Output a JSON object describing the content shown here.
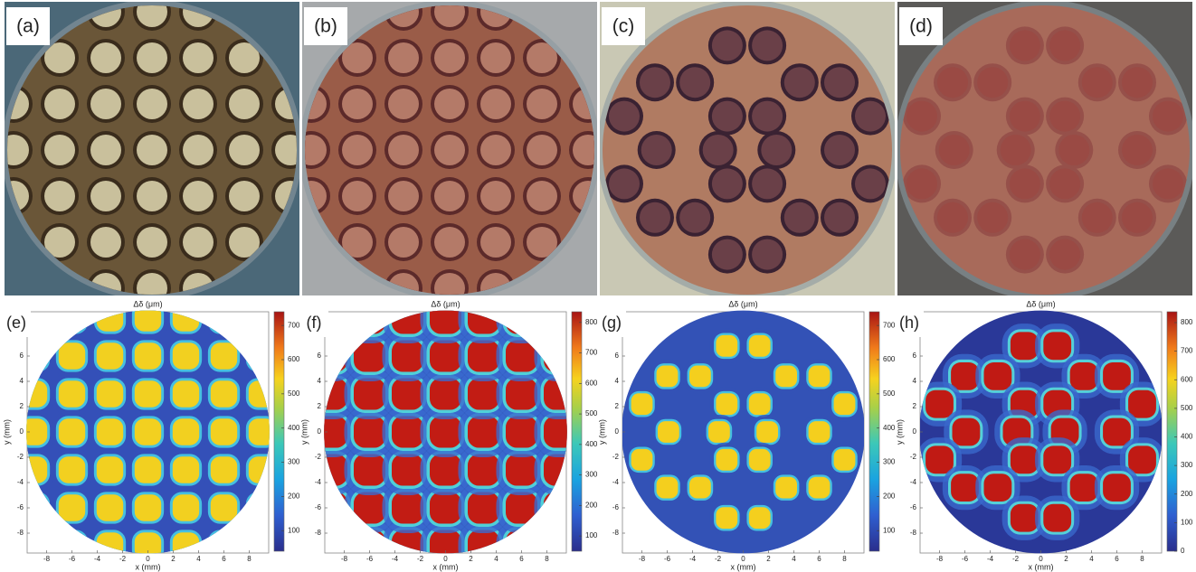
{
  "photos": [
    {
      "label": "(a)"
    },
    {
      "label": "(b)"
    },
    {
      "label": "(c)"
    },
    {
      "label": "(d)"
    }
  ],
  "plots": [
    {
      "label": "(e)",
      "title": "Δδ (μm)",
      "x_label": "x (mm)",
      "y_label": "y (mm)",
      "xticks": [
        -8,
        -6,
        -4,
        -2,
        0,
        2,
        4,
        6,
        8
      ],
      "yticks": [
        -8,
        -6,
        -4,
        -2,
        0,
        2,
        4,
        6
      ],
      "clim": [
        40,
        740
      ],
      "colorbar_ticks": [
        100,
        200,
        300,
        400,
        500,
        600,
        700
      ]
    },
    {
      "label": "(f)",
      "title": "Δδ (μm)",
      "x_label": "x (mm)",
      "y_label": "y (mm)",
      "xticks": [
        -8,
        -6,
        -4,
        -2,
        0,
        2,
        4,
        6,
        8
      ],
      "yticks": [
        -8,
        -6,
        -4,
        -2,
        0,
        2,
        4,
        6
      ],
      "clim": [
        50,
        835
      ],
      "colorbar_ticks": [
        100,
        200,
        300,
        400,
        500,
        600,
        700,
        800
      ]
    },
    {
      "label": "(g)",
      "title": "Δδ (μm)",
      "x_label": "x (mm)",
      "y_label": "y (mm)",
      "xticks": [
        -8,
        -6,
        -4,
        -2,
        0,
        2,
        4,
        6,
        8
      ],
      "yticks": [
        -8,
        -6,
        -4,
        -2,
        0,
        2,
        4,
        6
      ],
      "clim": [
        40,
        740
      ],
      "colorbar_ticks": [
        100,
        200,
        300,
        400,
        500,
        600,
        700
      ]
    },
    {
      "label": "(h)",
      "title": "Δδ (μm)",
      "x_label": "x (mm)",
      "y_label": "y (mm)",
      "xticks": [
        -8,
        -6,
        -4,
        -2,
        0,
        2,
        4,
        6,
        8
      ],
      "yticks": [
        -8,
        -6,
        -4,
        -2,
        0,
        2,
        4,
        6
      ],
      "clim": [
        0,
        838
      ],
      "colorbar_ticks": [
        0,
        100,
        200,
        300,
        400,
        500,
        600,
        700,
        800
      ]
    }
  ]
}
